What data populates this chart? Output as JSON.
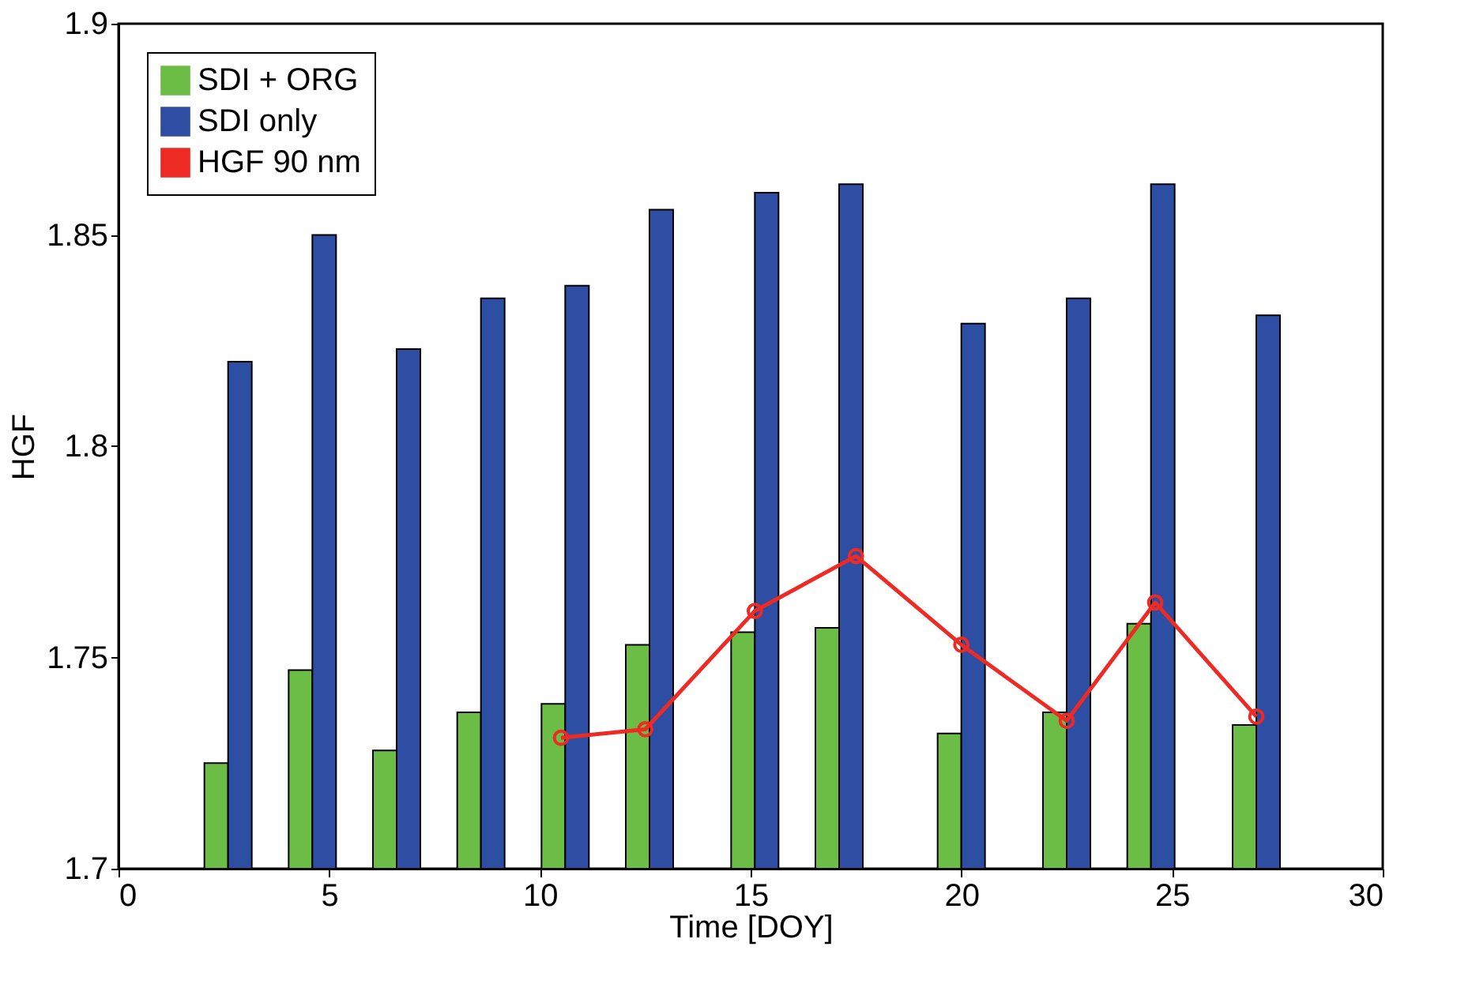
{
  "chart_data": {
    "type": "bar",
    "xlabel": "Time [DOY]",
    "ylabel": "HGF",
    "x": [
      2.6,
      4.6,
      6.6,
      8.6,
      10.6,
      12.6,
      15.1,
      17.1,
      20.0,
      22.5,
      24.5,
      27.0
    ],
    "xlim": [
      0,
      30
    ],
    "xticks": [
      0,
      5,
      10,
      15,
      20,
      25,
      30
    ],
    "ylim": [
      1.7,
      1.9
    ],
    "yticks": [
      1.7,
      1.75,
      1.8,
      1.85,
      1.9
    ],
    "grid": false,
    "legend": "top left",
    "series": [
      {
        "name": "SDI + ORG",
        "color": "#6cbd45",
        "values": [
          1.725,
          1.747,
          1.728,
          1.737,
          1.739,
          1.753,
          1.756,
          1.757,
          1.732,
          1.737,
          1.758,
          1.734
        ]
      },
      {
        "name": "SDI only",
        "color": "#2d4ea3",
        "values": [
          1.82,
          1.85,
          1.823,
          1.835,
          1.838,
          1.856,
          1.86,
          1.862,
          1.829,
          1.835,
          1.862,
          1.831
        ]
      },
      {
        "name": "HGF 90 nm",
        "type": "line",
        "color": "#ee2a24",
        "marker": "circle",
        "x": [
          10.5,
          12.5,
          15.1,
          17.5,
          20.0,
          22.5,
          24.6,
          27.0
        ],
        "values": [
          1.731,
          1.733,
          1.761,
          1.774,
          1.753,
          1.735,
          1.763,
          1.736
        ]
      }
    ]
  }
}
